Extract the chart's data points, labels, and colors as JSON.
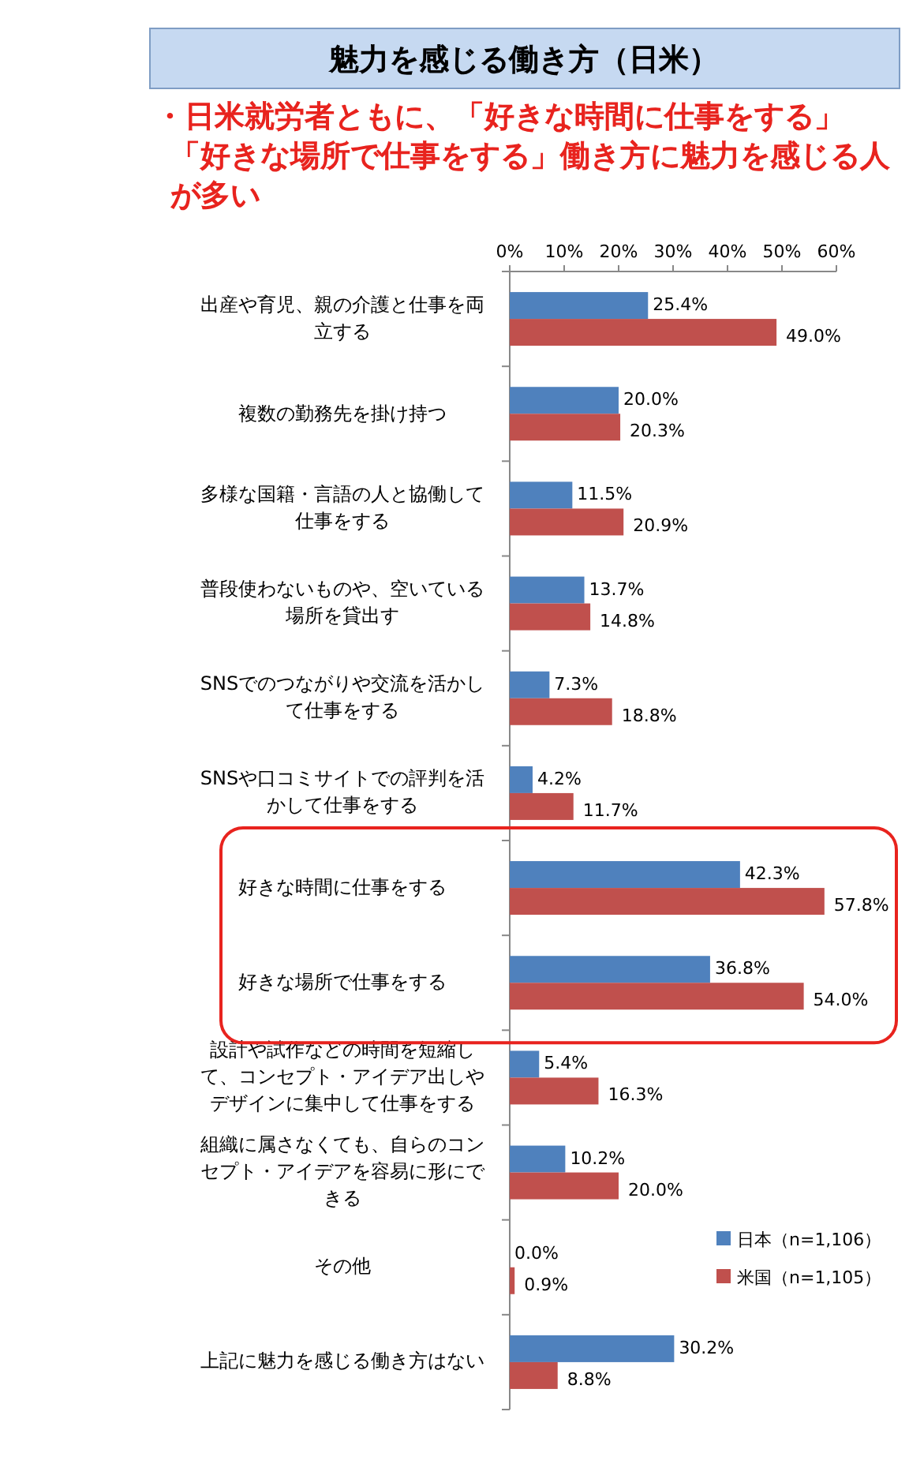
{
  "chart_data": {
    "type": "bar",
    "orientation": "horizontal",
    "title": "魅力を感じる働き方（日米）",
    "subtitle": "・日米就労者ともに、「好きな時間に仕事をする」「好きな場所で仕事をする」働き方に魅力を感じる人が多い",
    "categories": [
      "出産や育児、親の介護と仕事を両立する",
      "複数の勤務先を掛け持つ",
      "多様な国籍・言語の人と協働して仕事をする",
      "普段使わないものや、空いている場所を貸出す",
      "SNSでのつながりや交流を活かして仕事をする",
      "SNSや口コミサイトでの評判を活かして仕事をする",
      "好きな時間に仕事をする",
      "好きな場所で仕事をする",
      "設計や試作などの時間を短縮して、コンセプト・アイデア出しやデザインに集中して仕事をする",
      "組織に属さなくても、自らのコンセプト・アイデアを容易に形にできる",
      "その他",
      "上記に魅力を感じる働き方はない"
    ],
    "series": [
      {
        "name": "日本（n=1,106）",
        "color": "#4f81bd",
        "values": [
          25.4,
          20.0,
          11.5,
          13.7,
          7.3,
          4.2,
          42.3,
          36.8,
          5.4,
          10.2,
          0.0,
          30.2
        ],
        "value_labels": [
          "25.4%",
          "20.0%",
          "11.5%",
          "13.7%",
          "7.3%",
          "4.2%",
          "42.3%",
          "36.8%",
          "5.4%",
          "10.2%",
          "0.0%",
          "30.2%"
        ]
      },
      {
        "name": "米国（n=1,105）",
        "color": "#c0504d",
        "values": [
          49.0,
          20.3,
          20.9,
          14.8,
          18.8,
          11.7,
          57.8,
          54.0,
          16.3,
          20.0,
          0.9,
          8.8
        ],
        "value_labels": [
          "49.0%",
          "20.3%",
          "20.9%",
          "14.8%",
          "18.8%",
          "11.7%",
          "57.8%",
          "54.0%",
          "16.3%",
          "20.0%",
          "0.9%",
          "8.8%"
        ]
      }
    ],
    "xlim": [
      0,
      60
    ],
    "xticks": [
      {
        "value": 0,
        "label": "0%"
      },
      {
        "value": 10,
        "label": "10%"
      },
      {
        "value": 20,
        "label": "20%"
      },
      {
        "value": 30,
        "label": "30%"
      },
      {
        "value": 40,
        "label": "40%"
      },
      {
        "value": 50,
        "label": "50%"
      },
      {
        "value": 60,
        "label": "60%"
      }
    ],
    "grid": false,
    "legend": "bottom right"
  }
}
